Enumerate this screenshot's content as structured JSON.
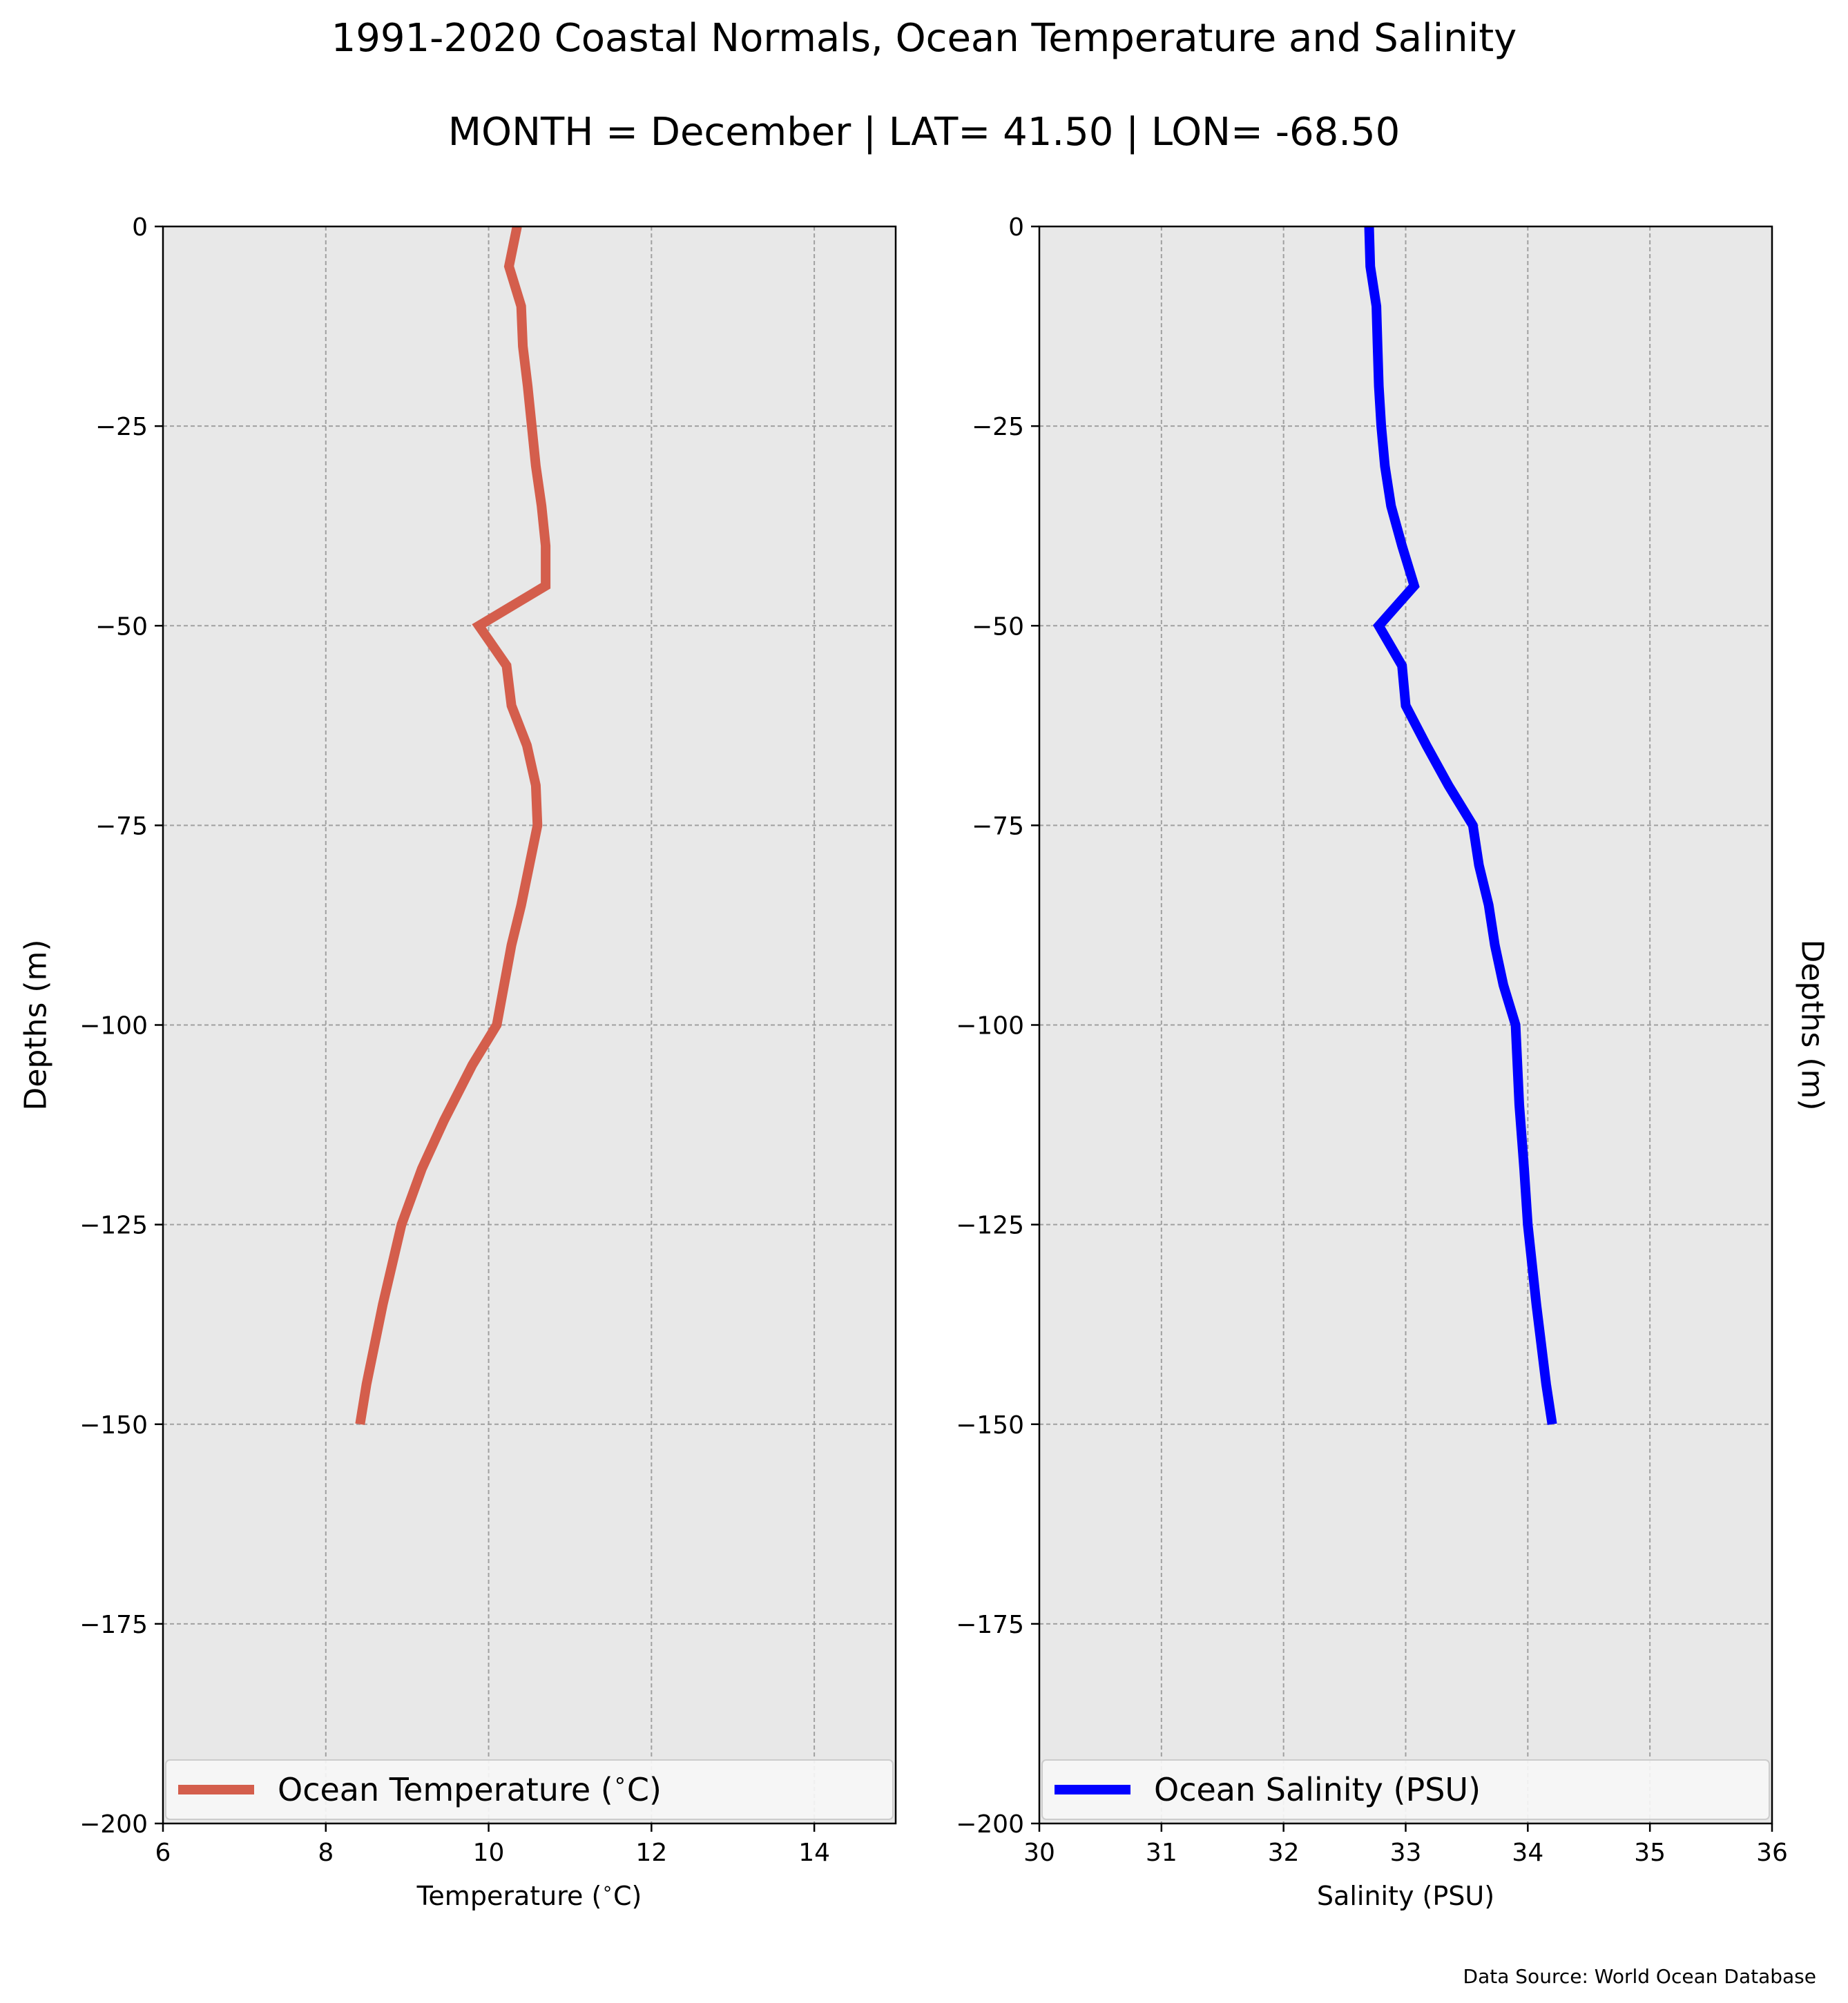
{
  "figure": {
    "title_line1": "1991-2020 Coastal Normals, Ocean Temperature and Salinity",
    "title_line2": "MONTH = December | LAT= 41.50 | LON= -68.50",
    "source": "Data Source: World Ocean Database"
  },
  "colors": {
    "background": "#ffffff",
    "plot_background": "#e8e8e8",
    "grid": "#a0a0a0",
    "temperature": "#d45e4c",
    "salinity": "#0000ff"
  },
  "chart_data": [
    {
      "type": "line",
      "orientation": "depth-profile",
      "xlabel": "Temperature ($^\\circ$C)",
      "ylabel": "Depths (m)",
      "ylabel_position": "left",
      "xlim": [
        6,
        15
      ],
      "ylim": [
        -200,
        0
      ],
      "xticks": [
        6,
        8,
        10,
        12,
        14
      ],
      "yticks": [
        0,
        -25,
        -50,
        -75,
        -100,
        -125,
        -150,
        -175,
        -200
      ],
      "grid": true,
      "legend_position": "bottom",
      "series": [
        {
          "name": "Ocean Temperature ($^\\circ$C)",
          "color": "#d45e4c",
          "x": [
            10.35,
            10.25,
            10.4,
            10.42,
            10.48,
            10.53,
            10.58,
            10.65,
            10.7,
            10.7,
            9.88,
            10.22,
            10.28,
            10.47,
            10.58,
            10.6,
            10.5,
            10.4,
            10.28,
            10.1,
            9.8,
            9.45,
            9.18,
            8.93,
            8.7,
            8.5,
            8.42
          ],
          "y": [
            0,
            -5,
            -10,
            -15,
            -20,
            -25,
            -30,
            -35,
            -40,
            -45,
            -50,
            -55,
            -60,
            -65,
            -70,
            -75,
            -80,
            -85,
            -90,
            -100,
            -105,
            -112,
            -118,
            -125,
            -135,
            -145,
            -150
          ]
        }
      ]
    },
    {
      "type": "line",
      "orientation": "depth-profile",
      "xlabel": "Salinity (PSU)",
      "ylabel": "Depths (m)",
      "ylabel_position": "right",
      "xlim": [
        30,
        36
      ],
      "ylim": [
        -200,
        0
      ],
      "xticks": [
        30,
        31,
        32,
        33,
        34,
        35,
        36
      ],
      "yticks": [
        0,
        -25,
        -50,
        -75,
        -100,
        -125,
        -150,
        -175,
        -200
      ],
      "grid": true,
      "legend_position": "bottom",
      "series": [
        {
          "name": "Ocean Salinity (PSU)",
          "color": "#0000ff",
          "x": [
            32.7,
            32.71,
            32.76,
            32.77,
            32.78,
            32.8,
            32.83,
            32.88,
            32.97,
            33.07,
            32.78,
            32.97,
            33.0,
            33.17,
            33.35,
            33.55,
            33.6,
            33.68,
            33.73,
            33.8,
            33.9,
            33.93,
            33.97,
            34.0,
            34.07,
            34.15,
            34.2
          ],
          "y": [
            0,
            -5,
            -10,
            -15,
            -20,
            -25,
            -30,
            -35,
            -40,
            -45,
            -50,
            -55,
            -60,
            -65,
            -70,
            -75,
            -80,
            -85,
            -90,
            -95,
            -100,
            -110,
            -118,
            -125,
            -135,
            -145,
            -150
          ]
        }
      ]
    }
  ]
}
